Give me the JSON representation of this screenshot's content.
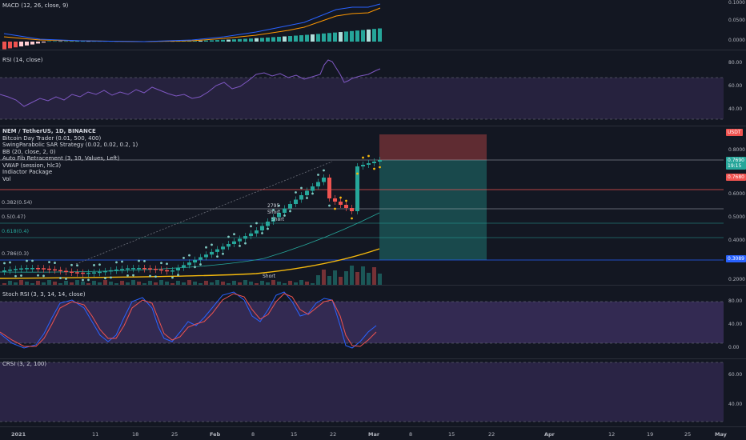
{
  "macd": {
    "label": "MACD (12, 26, close, 9)",
    "ticks": [
      "0.1000",
      "0.0500",
      "0.0000"
    ]
  },
  "rsi": {
    "label": "RSI (14, close)",
    "ticks": [
      "80.00",
      "60.00",
      "40.00"
    ]
  },
  "main": {
    "legend": [
      "NEM / TetherUS, 1D, BINANCE",
      "Bitcoin Day Trader (0.01, 500, 400)",
      "SwingParabolic SAR Strategy (0.02, 0.02, 0.2, 1)",
      "BB (20, close, 2, 0)",
      "Auto Fib Retracement (3, 10, Values, Left)",
      "VWAP (session, hlc3)",
      "Indiactor Package",
      "Vol"
    ],
    "currency_badge": "USDT",
    "price_ticks": [
      "0.8000",
      "0.6000",
      "0.5000",
      "0.4000",
      "0.2000"
    ],
    "current_price": "0.7690",
    "countdown": "19:15",
    "price_label_2": "0.7680",
    "price_label_3": "0.3089",
    "fib_levels": [
      "0.382(0.54)",
      "0.5(0.47)",
      "0.618(0.4)",
      "0.786(0.3)"
    ],
    "annotations": {
      "a1": "2795",
      "a2": "Short",
      "a3": "Short",
      "a4": "Short"
    },
    "colors": {
      "up": "#26a69a",
      "down": "#ef5350",
      "sar": "#26a69a",
      "vwap": "#f5b90d"
    }
  },
  "stoch": {
    "label": "Stoch RSI (3, 3, 14, 14, close)",
    "ticks": [
      "80.00",
      "40.00",
      "0.00"
    ]
  },
  "crsi": {
    "label": "CRSI (3, 2, 100)",
    "ticks": [
      "60.00",
      "40.00"
    ]
  },
  "dates": [
    "2021",
    "11",
    "18",
    "25",
    "Feb",
    "8",
    "15",
    "22",
    "Mar",
    "8",
    "15",
    "22",
    "Apr",
    "12",
    "19",
    "25",
    "May"
  ]
}
